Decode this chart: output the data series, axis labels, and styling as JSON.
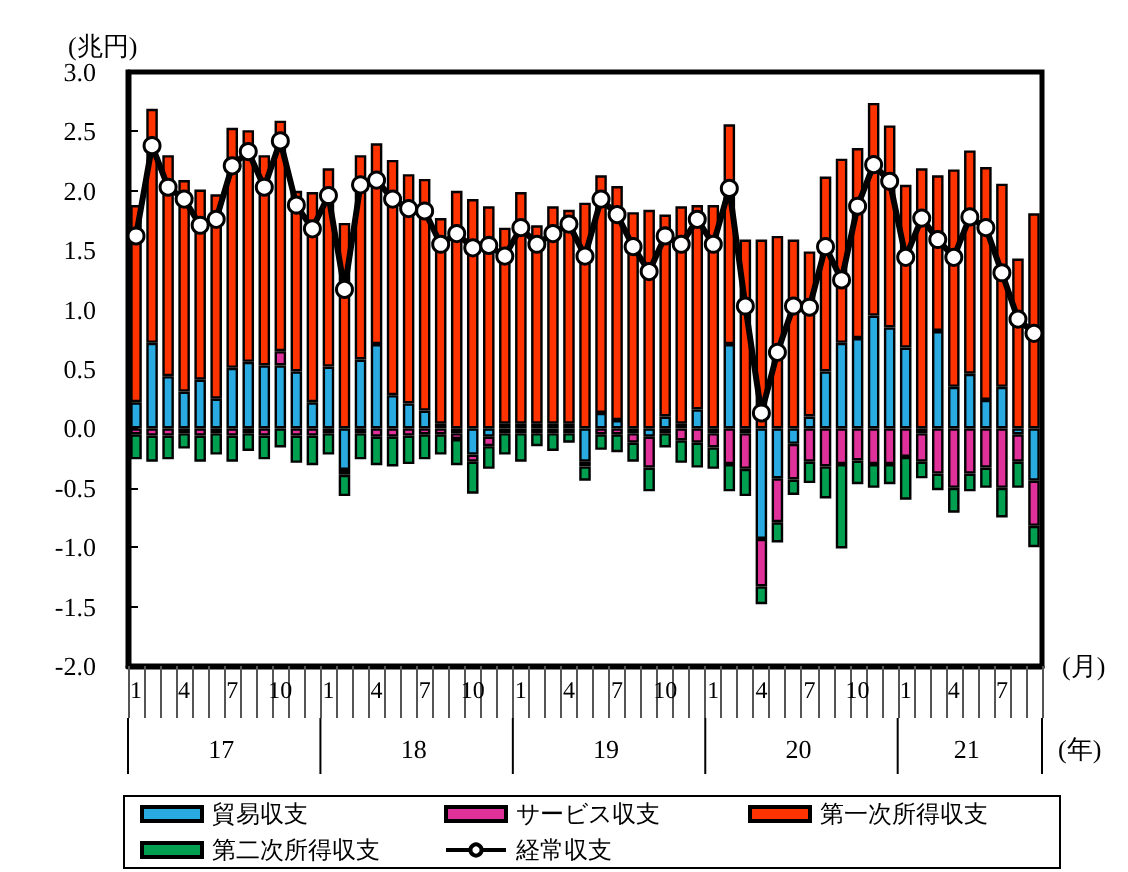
{
  "chart_data": {
    "type": "bar",
    "stacked": true,
    "ylabel": "(兆円)",
    "xlabel": "(月)",
    "categories": [
      "1",
      null,
      null,
      "4",
      null,
      null,
      "7",
      null,
      null,
      "10",
      null,
      null,
      "1",
      null,
      null,
      "4",
      null,
      null,
      "7",
      null,
      null,
      "10",
      null,
      null,
      "1",
      null,
      null,
      "4",
      null,
      null,
      "7",
      null,
      null,
      "10",
      null,
      null,
      "1",
      null,
      null,
      "4",
      null,
      null,
      "7",
      null,
      null,
      "10",
      null,
      null,
      "1",
      null,
      null,
      "4",
      null,
      null,
      "7",
      null,
      null
    ],
    "ylim": [
      -2,
      3
    ],
    "yticks": [
      {
        "value": -2,
        "label": "-2.0"
      },
      {
        "value": -1.5,
        "label": "-1.5"
      },
      {
        "value": -1,
        "label": "-1.0"
      },
      {
        "value": -0.5,
        "label": "-0.5"
      },
      {
        "value": 0,
        "label": "0.0"
      },
      {
        "value": 0.5,
        "label": "0.5"
      },
      {
        "value": 1,
        "label": "1.0"
      },
      {
        "value": 1.5,
        "label": "1.5"
      },
      {
        "value": 2,
        "label": "2.0"
      },
      {
        "value": 2.5,
        "label": "2.5"
      },
      {
        "value": 3,
        "label": "3.0"
      }
    ],
    "grid": false,
    "legend": "bottom",
    "annotations": [
      "17",
      "18",
      "19",
      "20",
      "21",
      "(年)"
    ],
    "series": [
      {
        "name": "貿易収支",
        "color": "#29abe2",
        "values": [
          0.22,
          0.72,
          0.44,
          0.31,
          0.41,
          0.25,
          0.51,
          0.56,
          0.53,
          0.53,
          0.48,
          0.22,
          0.52,
          -0.35,
          0.58,
          0.71,
          0.28,
          0.21,
          0.15,
          0.04,
          -0.04,
          -0.22,
          -0.07,
          0.04,
          0.04,
          0.04,
          0.04,
          0.04,
          -0.28,
          0.13,
          0.07,
          -0.04,
          -0.07,
          0.1,
          0.04,
          0.16,
          -0.04,
          0.71,
          -0.04,
          -0.93,
          -0.42,
          -0.13,
          0.1,
          0.48,
          0.72,
          0.76,
          0.95,
          0.85,
          0.68,
          -0.04,
          0.82,
          0.35,
          0.46,
          0.24,
          0.35,
          -0.05,
          -0.44
        ]
      },
      {
        "name": "サービス収支",
        "color": "#e0309a",
        "values": [
          -0.05,
          -0.06,
          -0.06,
          -0.04,
          -0.06,
          -0.04,
          -0.06,
          -0.04,
          -0.06,
          0.12,
          -0.06,
          -0.06,
          -0.04,
          -0.04,
          -0.04,
          -0.07,
          -0.07,
          -0.06,
          -0.05,
          -0.05,
          -0.05,
          -0.06,
          -0.08,
          -0.04,
          -0.04,
          -0.04,
          -0.04,
          -0.04,
          -0.04,
          -0.05,
          -0.05,
          -0.08,
          -0.26,
          -0.04,
          -0.1,
          -0.12,
          -0.12,
          -0.3,
          -0.3,
          -0.4,
          -0.37,
          -0.3,
          -0.28,
          -0.32,
          -0.3,
          -0.27,
          -0.3,
          -0.3,
          -0.24,
          -0.24,
          -0.38,
          -0.5,
          -0.38,
          -0.33,
          -0.5,
          -0.23,
          -0.38
        ]
      },
      {
        "name": "第一次所得収支",
        "color": "#ff3300",
        "values": [
          1.66,
          1.97,
          1.86,
          1.78,
          1.6,
          1.72,
          2.02,
          1.95,
          1.77,
          1.94,
          1.52,
          1.77,
          1.67,
          1.73,
          1.72,
          1.69,
          1.98,
          1.93,
          1.95,
          1.73,
          2.0,
          1.93,
          1.87,
          1.65,
          1.95,
          1.67,
          1.83,
          1.8,
          1.9,
          2.0,
          1.97,
          1.82,
          1.84,
          1.7,
          1.83,
          1.72,
          1.88,
          1.85,
          1.59,
          1.59,
          1.62,
          1.59,
          1.39,
          1.64,
          1.55,
          1.6,
          1.79,
          1.7,
          1.37,
          2.19,
          1.31,
          1.83,
          1.88,
          1.96,
          1.71,
          1.43,
          1.81
        ]
      },
      {
        "name": "第二次所得収支",
        "color": "#00a050",
        "values": [
          -0.21,
          -0.22,
          -0.2,
          -0.13,
          -0.22,
          -0.18,
          -0.22,
          -0.15,
          -0.2,
          -0.16,
          -0.23,
          -0.25,
          -0.18,
          -0.18,
          -0.22,
          -0.24,
          -0.25,
          -0.24,
          -0.21,
          -0.17,
          -0.22,
          -0.27,
          -0.19,
          -0.18,
          -0.24,
          -0.11,
          -0.15,
          -0.08,
          -0.12,
          -0.13,
          -0.15,
          -0.16,
          -0.2,
          -0.12,
          -0.19,
          -0.21,
          -0.18,
          -0.23,
          -0.23,
          -0.15,
          -0.17,
          -0.13,
          -0.18,
          -0.27,
          -0.71,
          -0.2,
          -0.2,
          -0.17,
          -0.36,
          -0.14,
          -0.14,
          -0.21,
          -0.15,
          -0.17,
          -0.25,
          -0.22,
          -0.18
        ]
      },
      {
        "name": "経常収支",
        "type": "line",
        "color": "#000000",
        "marker": "circle",
        "values": [
          1.62,
          2.38,
          2.03,
          1.93,
          1.71,
          1.76,
          2.21,
          2.33,
          2.03,
          2.42,
          1.88,
          1.68,
          1.96,
          1.17,
          2.05,
          2.09,
          1.93,
          1.85,
          1.83,
          1.55,
          1.64,
          1.52,
          1.54,
          1.45,
          1.69,
          1.55,
          1.64,
          1.72,
          1.45,
          1.93,
          1.8,
          1.53,
          1.32,
          1.62,
          1.55,
          1.76,
          1.55,
          2.02,
          1.03,
          0.13,
          0.64,
          1.03,
          1.02,
          1.53,
          1.25,
          1.87,
          2.22,
          2.08,
          1.44,
          1.77,
          1.59,
          1.44,
          1.78,
          1.69,
          1.31,
          0.92,
          0.8
        ]
      }
    ]
  }
}
